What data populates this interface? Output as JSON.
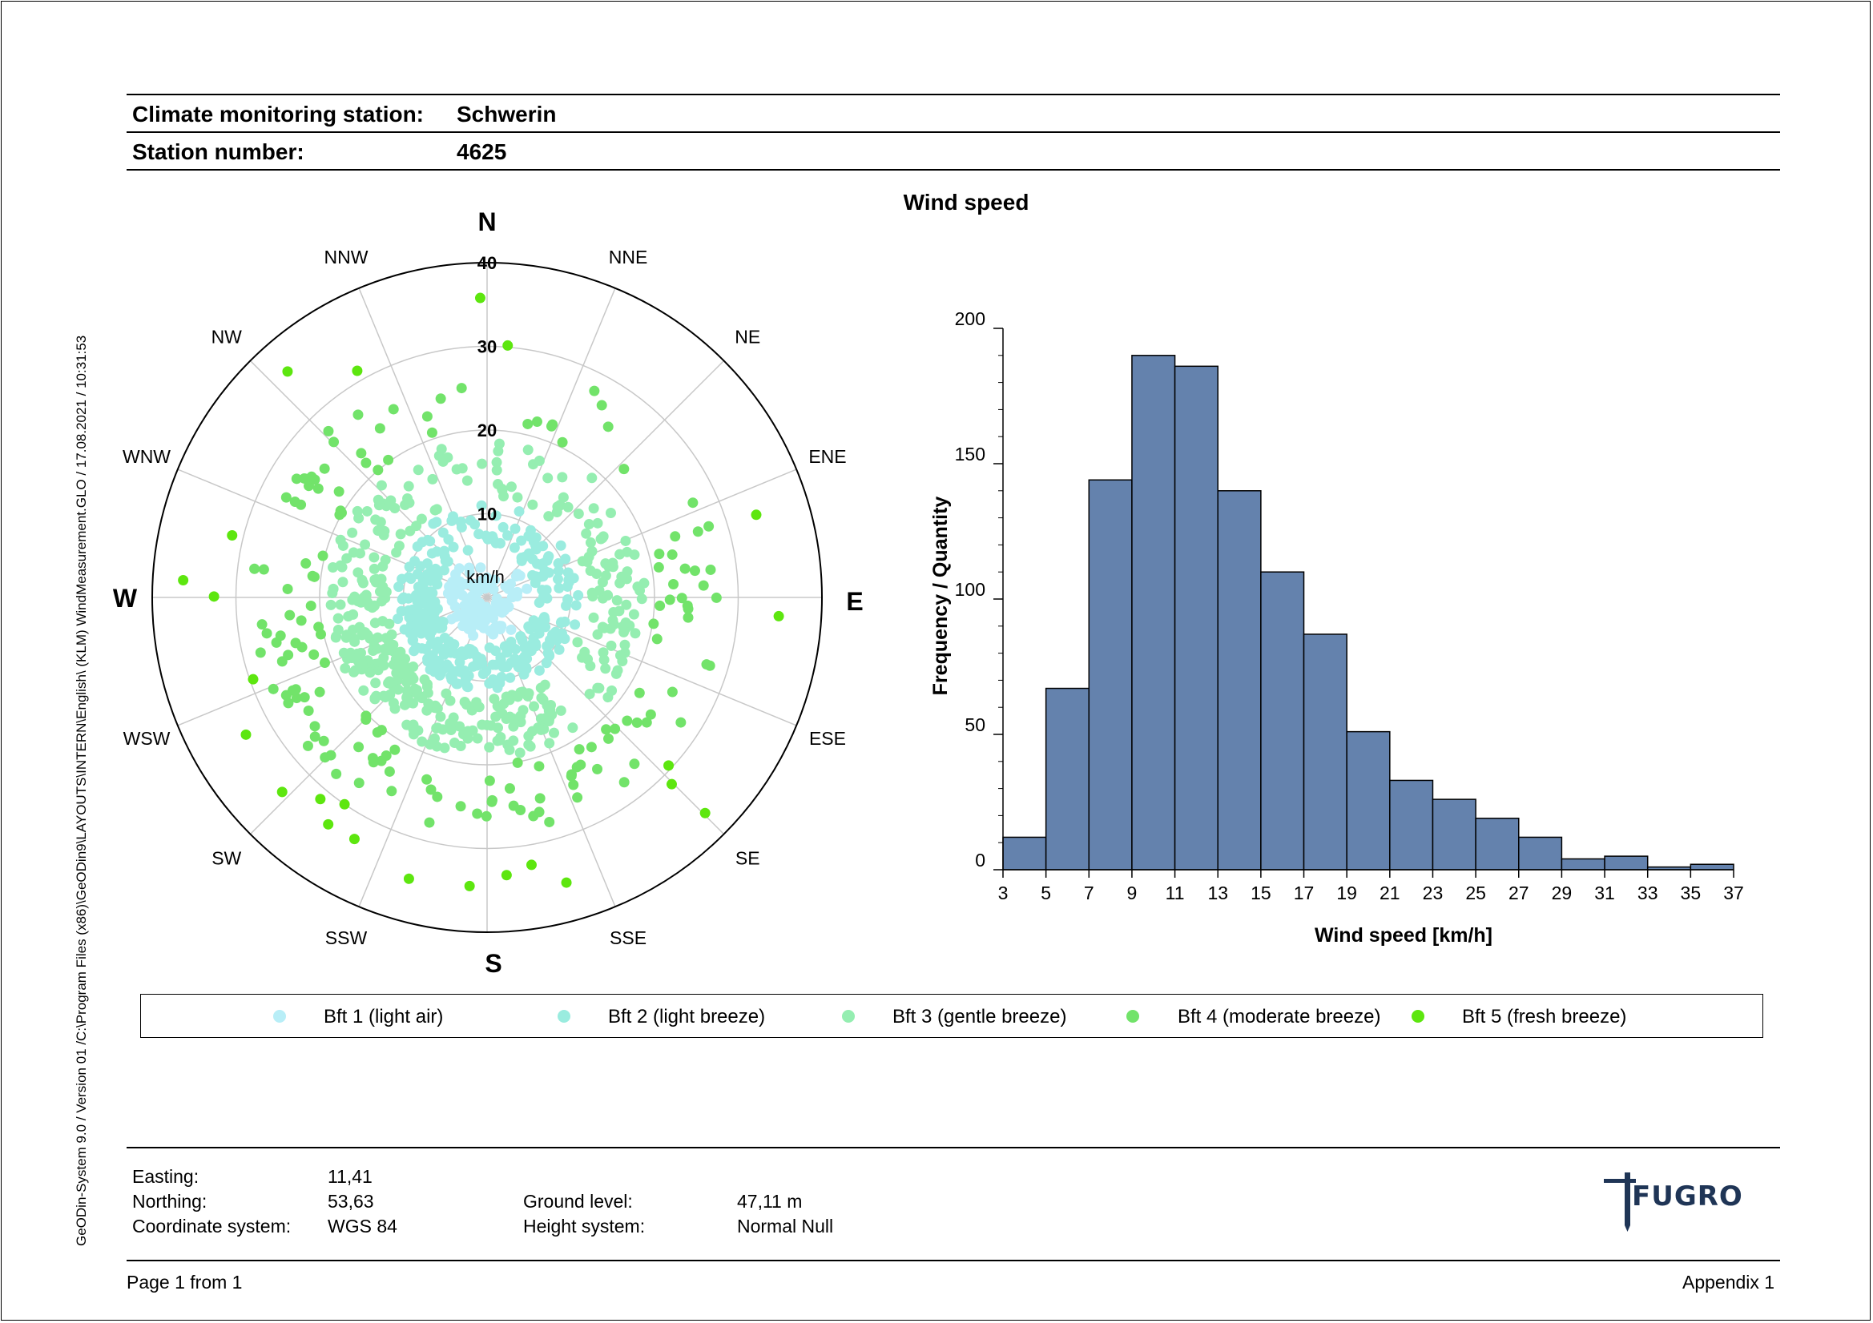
{
  "header": {
    "station_label": "Climate monitoring station:",
    "station_value": "Schwerin",
    "number_label": "Station number:",
    "number_value": "4625"
  },
  "side_text": "GeODin-System 9.0 / Version 01 /C:\\Program Files (x86)\\GeODin9\\LAYOUTS\\INTERN\\English\\ (KLM) WindMeasurement.GLO / 17.08.2021 / 10:31:53",
  "chart_data": [
    {
      "type": "scatter",
      "subtype": "polar-wind-rose",
      "unit_label": "km/h",
      "radial_ticks": [
        "10",
        "20",
        "30",
        "40"
      ],
      "radial_max": 40,
      "directions_major": [
        "N",
        "E",
        "S",
        "W"
      ],
      "directions_minor": [
        "NNE",
        "NE",
        "ENE",
        "ESE",
        "SE",
        "SSE",
        "SSW",
        "SW",
        "WSW",
        "WNW",
        "NW",
        "NNW"
      ],
      "series": [
        {
          "name": "Bft 1 (light air)",
          "color": "#b8eef7",
          "speed_range": [
            1,
            5
          ]
        },
        {
          "name": "Bft 2 (light breeze)",
          "color": "#9aecdf",
          "speed_range": [
            6,
            11
          ]
        },
        {
          "name": "Bft 3 (gentle breeze)",
          "color": "#95eeb1",
          "speed_range": [
            12,
            19
          ]
        },
        {
          "name": "Bft 4 (moderate breeze)",
          "color": "#72e36a",
          "speed_range": [
            20,
            28
          ]
        },
        {
          "name": "Bft 5 (fresh breeze)",
          "color": "#5de60f",
          "speed_range": [
            29,
            38
          ]
        }
      ],
      "point_count": 1000
    },
    {
      "type": "bar",
      "subtype": "histogram",
      "title": "Wind speed",
      "xlabel": "Wind speed  [km/h]",
      "ylabel": "Frequency / Quantity",
      "x_ticks": [
        "3",
        "5",
        "7",
        "9",
        "11",
        "13",
        "15",
        "17",
        "19",
        "21",
        "23",
        "25",
        "27",
        "29",
        "31",
        "33",
        "35",
        "37"
      ],
      "bin_edges": [
        3,
        5,
        7,
        9,
        11,
        13,
        15,
        17,
        19,
        21,
        23,
        25,
        27,
        29,
        31,
        33,
        35,
        37
      ],
      "values": [
        12,
        67,
        144,
        190,
        186,
        140,
        110,
        87,
        51,
        33,
        26,
        19,
        12,
        4,
        5,
        1,
        2
      ],
      "y_ticks": [
        "0",
        "50",
        "100",
        "150",
        "200"
      ],
      "ylim": [
        0,
        200
      ],
      "bar_color": "#6482ad"
    }
  ],
  "footer": {
    "easting_label": "Easting:",
    "easting_value": "11,41",
    "northing_label": "Northing:",
    "northing_value": "53,63",
    "coord_label": "Coordinate system:",
    "coord_value": "WGS 84",
    "ground_label": "Ground level:",
    "ground_value": "47,11 m",
    "height_label": "Height system:",
    "height_value": "Normal Null",
    "page": "Page 1 from 1",
    "appendix": "Appendix 1",
    "logo_text": "FUGRO"
  }
}
